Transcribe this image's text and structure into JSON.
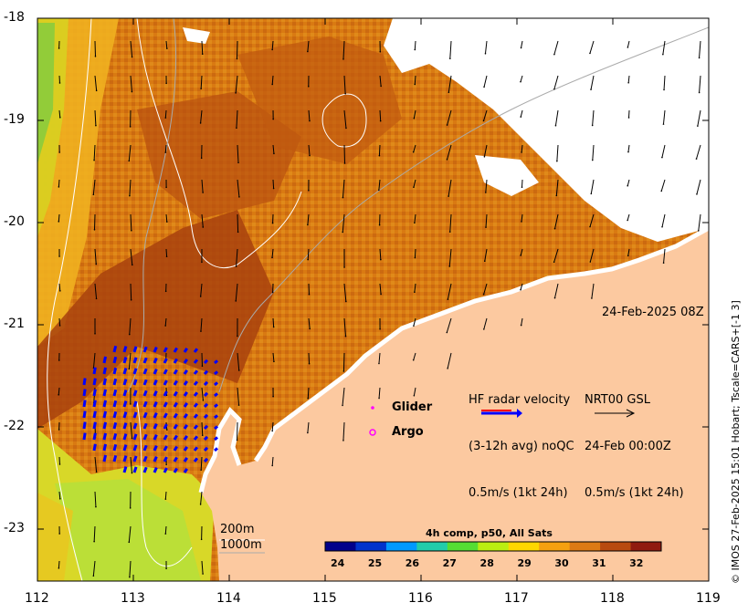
{
  "map": {
    "x_ticks": [
      "112",
      "113",
      "114",
      "115",
      "116",
      "117",
      "118",
      "119"
    ],
    "y_ticks": [
      "-18",
      "-19",
      "-20",
      "-21",
      "-22",
      "-23"
    ],
    "timestamp": "24-Feb-2025 08Z",
    "hf_radar": {
      "label_line1": "HF radar velocity",
      "label_line2": "(3-12h avg) noQC",
      "label_line3": "0.5m/s (1kt 24h)"
    },
    "nrt": {
      "label_line1": "NRT00 GSL",
      "label_line2": "24-Feb 00:00Z",
      "label_line3": "0.5m/s (1kt 24h)"
    },
    "legend": {
      "glider": "Glider",
      "argo": "Argo"
    },
    "bathymetry": {
      "contour_200": "200m",
      "contour_1000": "1000m"
    },
    "colorbar": {
      "title": "4h comp, p50, All Sats",
      "ticks": [
        "24",
        "25",
        "26",
        "27",
        "28",
        "29",
        "30",
        "31",
        "32"
      ],
      "colors": [
        "#00008b",
        "#0033cc",
        "#0099ff",
        "#22ccaa",
        "#55dd33",
        "#bbee11",
        "#ffd700",
        "#f5a010",
        "#dd7a15",
        "#b84a10",
        "#901a10"
      ]
    },
    "credit": "© IMOS 27-Feb-2025 15:01 Hobart; Tscale=CARS+[-1 3]",
    "colors": {
      "land": "#fcc9a0",
      "warm": "#d4700f",
      "hot": "#a8420e",
      "mid": "#f0a020",
      "cool": "#c8e030",
      "radar": "#0000ff",
      "argo": "#ff00ff"
    }
  }
}
